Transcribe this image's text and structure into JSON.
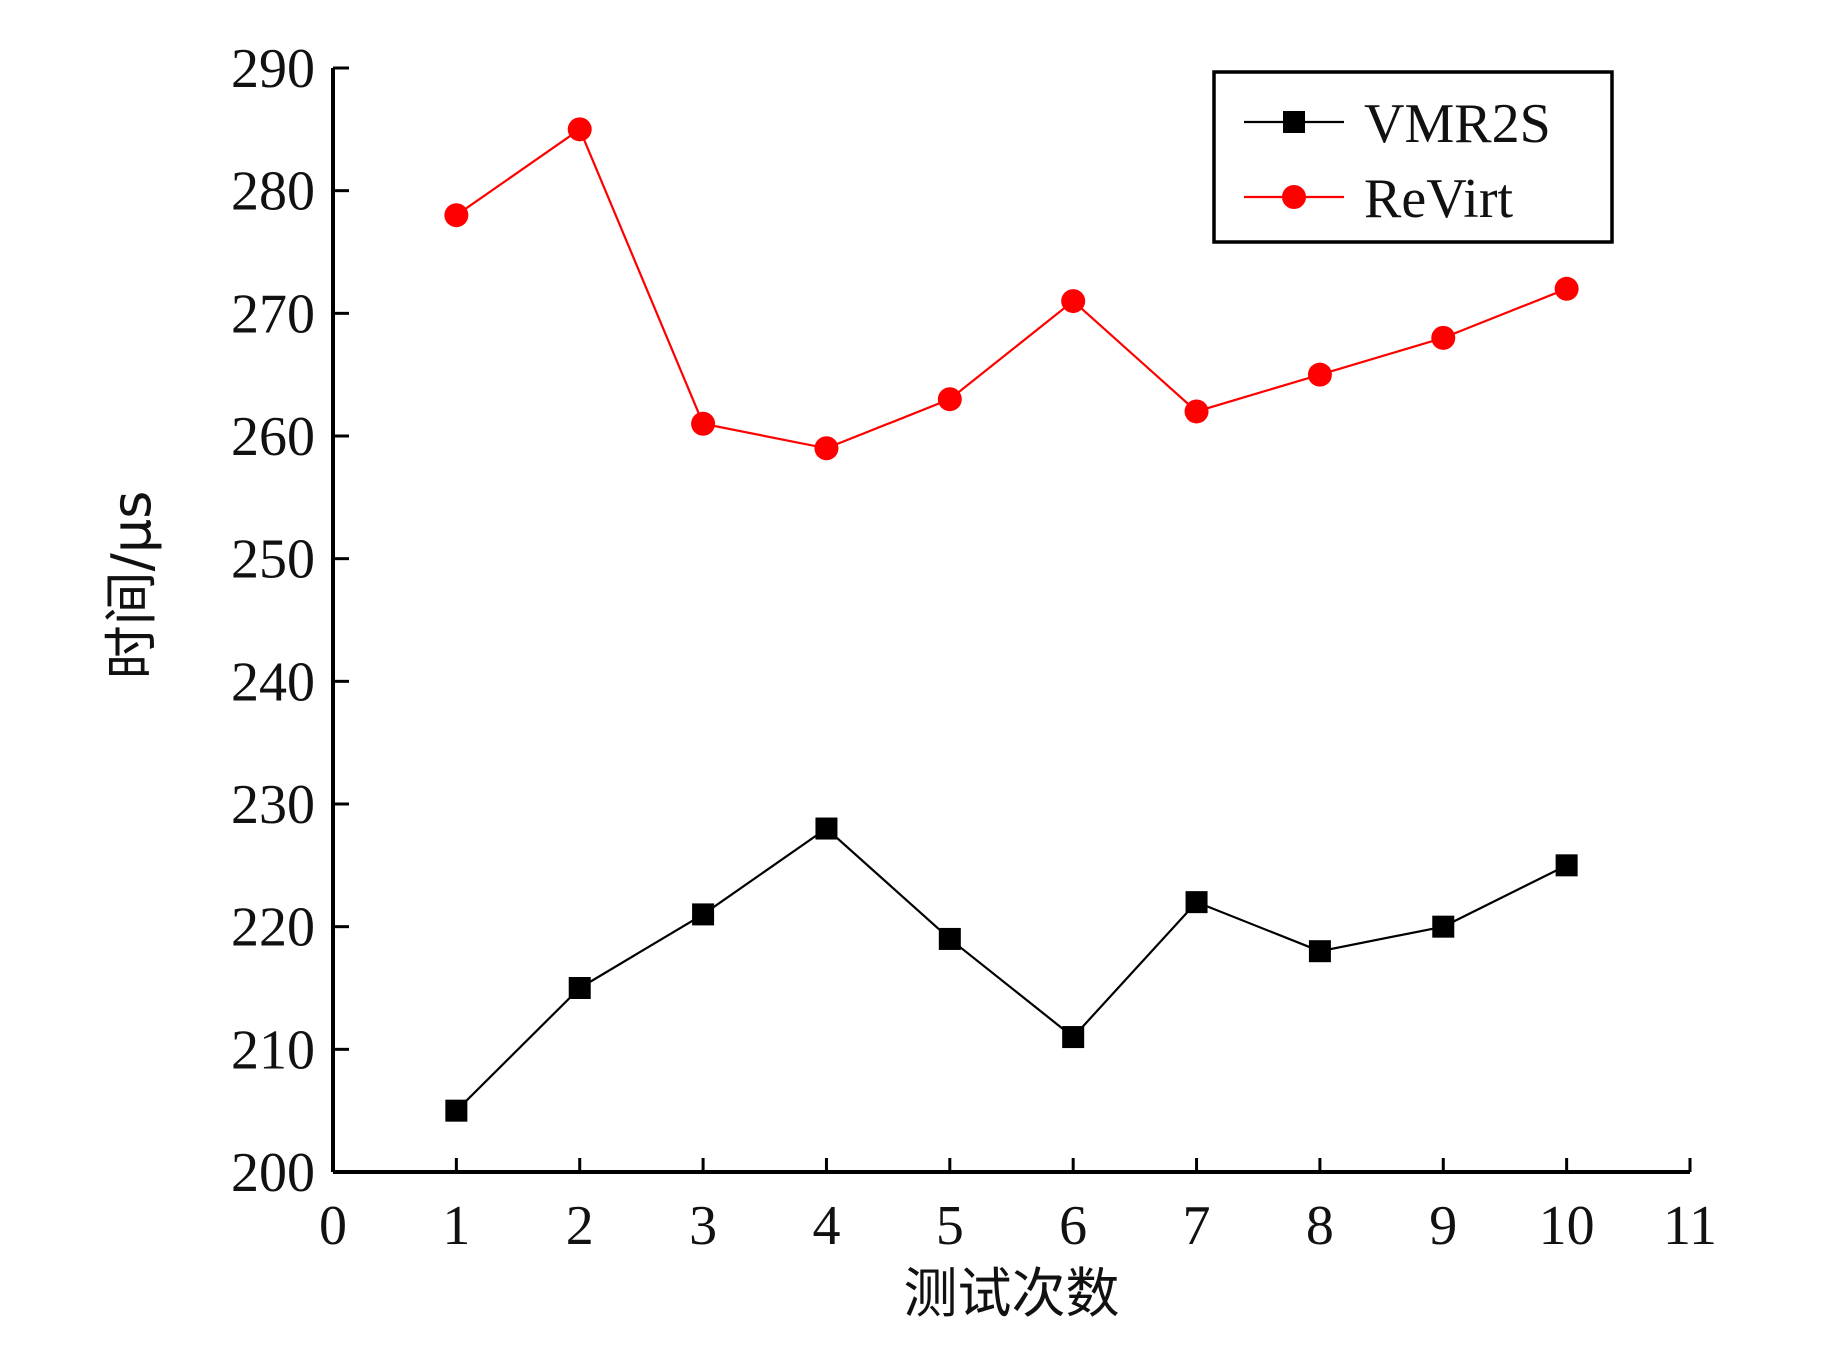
{
  "chart_data": {
    "type": "line",
    "title": "",
    "xlabel": "测试次数",
    "ylabel": "时间/μs",
    "xlim": [
      0,
      11
    ],
    "ylim": [
      200,
      290
    ],
    "x_ticks": [
      0,
      1,
      2,
      3,
      4,
      5,
      6,
      7,
      8,
      9,
      10,
      11
    ],
    "y_ticks": [
      200,
      210,
      220,
      230,
      240,
      250,
      260,
      270,
      280,
      290
    ],
    "grid": false,
    "legend_position": "top-right",
    "x": [
      1,
      2,
      3,
      4,
      5,
      6,
      7,
      8,
      9,
      10
    ],
    "series": [
      {
        "name": "VMR2S",
        "color": "#000000",
        "marker": "square",
        "values": [
          205,
          215,
          221,
          228,
          219,
          211,
          222,
          218,
          220,
          225
        ]
      },
      {
        "name": "ReVirt",
        "color": "#ff0000",
        "marker": "circle",
        "values": [
          278,
          285,
          261,
          259,
          263,
          271,
          262,
          265,
          268,
          272
        ]
      }
    ]
  }
}
